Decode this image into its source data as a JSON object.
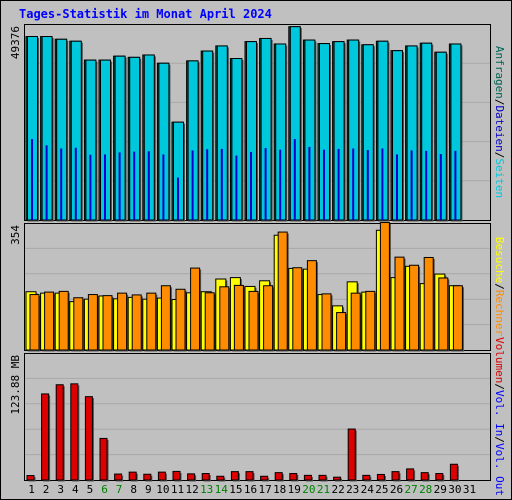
{
  "chart_data": {
    "type": "bar",
    "title": "Tages-Statistik im Monat April 2024",
    "categories": [
      "1",
      "2",
      "3",
      "4",
      "5",
      "6",
      "7",
      "8",
      "9",
      "10",
      "11",
      "12",
      "13",
      "14",
      "15",
      "16",
      "17",
      "18",
      "19",
      "20",
      "21",
      "22",
      "23",
      "24",
      "25",
      "26",
      "27",
      "28",
      "29",
      "30"
    ],
    "weekend_days": [
      "6",
      "7",
      "13",
      "14",
      "20",
      "21",
      "27",
      "28"
    ],
    "extra_tick_label": "31",
    "colors": {
      "title": "#0000ff",
      "anfragen": "#006655",
      "dateien": "#0000cc",
      "seiten": "#00c8dc",
      "besuche": "#ffff00",
      "rechner": "#ff8c00",
      "volumen": "#dd0000",
      "in_out_labels": "#0000ff",
      "weekend": "#008000",
      "weekday": "#000000"
    },
    "panels": [
      {
        "id": "hits",
        "ylabel": "49376",
        "ymax": 49376,
        "legend": [
          {
            "label": "Anfragen",
            "color": "#006655"
          },
          {
            "sep": "/"
          },
          {
            "label": "Dateien",
            "color": "#0000cc"
          },
          {
            "sep": "/"
          },
          {
            "label": "Seiten",
            "color": "#00c8dc"
          }
        ],
        "series": [
          {
            "name": "Anfragen",
            "values": [
              46700,
              46700,
              46000,
              45500,
              40700,
              40700,
              41700,
              41400,
              42000,
              39900,
              24900,
              40500,
              43000,
              44300,
              41100,
              45400,
              46200,
              44800,
              49200,
              45800,
              44900,
              45400,
              45800,
              44600,
              45500,
              43100,
              44300,
              45000,
              42700,
              44800
            ]
          },
          {
            "name": "Seiten",
            "values": [
              46700,
              46700,
              46000,
              45500,
              40700,
              40700,
              41700,
              41400,
              42000,
              39900,
              24900,
              40500,
              43000,
              44300,
              41100,
              45400,
              46200,
              44800,
              49200,
              45800,
              44900,
              45400,
              45800,
              44600,
              45500,
              43100,
              44300,
              45000,
              42700,
              44800
            ]
          },
          {
            "name": "Dateien",
            "values": [
              20600,
              19000,
              18200,
              18400,
              16600,
              16700,
              17200,
              17400,
              17500,
              16700,
              10800,
              17700,
              18000,
              18100,
              16400,
              17300,
              18300,
              17900,
              20600,
              18600,
              17900,
              18100,
              18200,
              17800,
              18200,
              16700,
              17700,
              17600,
              16800,
              17600
            ]
          }
        ]
      },
      {
        "id": "visits",
        "ylabel": "354",
        "ymax": 354,
        "legend": [
          {
            "label": "Besuche",
            "color": "#ffff00"
          },
          {
            "sep": "/"
          },
          {
            "label": "Rechner",
            "color": "#ff8c00"
          }
        ],
        "series": [
          {
            "name": "Besuche",
            "values": [
              165,
              161,
              161,
              137,
              144,
              153,
              145,
              149,
              144,
              147,
              143,
              162,
              165,
              201,
              205,
              180,
              196,
              325,
              231,
              229,
              157,
              125,
              193,
              164,
              339,
              205,
              237,
              188,
              215,
              182
            ]
          },
          {
            "name": "Rechner",
            "values": [
              157,
              164,
              166,
              148,
              157,
              154,
              161,
              156,
              161,
              182,
              172,
              232,
              162,
              179,
              183,
              166,
              182,
              334,
              233,
              253,
              159,
              106,
              161,
              166,
              361,
              263,
              240,
              262,
              204,
              182
            ]
          }
        ]
      },
      {
        "id": "volume",
        "ylabel": "123.88 MB",
        "ymax": 123.88,
        "legend": [
          {
            "label": "Volumen",
            "color": "#dd0000"
          },
          {
            "sep": "/"
          },
          {
            "label": "Vol. In",
            "color": "#0000ff"
          },
          {
            "sep": "/"
          },
          {
            "label": "Vol. Out",
            "color": "#0000ff"
          }
        ],
        "series": [
          {
            "name": "Volumen",
            "values": [
              4.4,
              85.3,
              94.4,
              95.3,
              82.6,
              41.2,
              5.9,
              7.8,
              5.7,
              7.8,
              8.5,
              6.1,
              6.4,
              3.7,
              8.3,
              8.3,
              3.7,
              7.3,
              6.4,
              4.6,
              4.6,
              2.8,
              50.5,
              4.6,
              5.5,
              8.3,
              11.0,
              7.3,
              6.4,
              15.6
            ]
          }
        ]
      }
    ]
  }
}
